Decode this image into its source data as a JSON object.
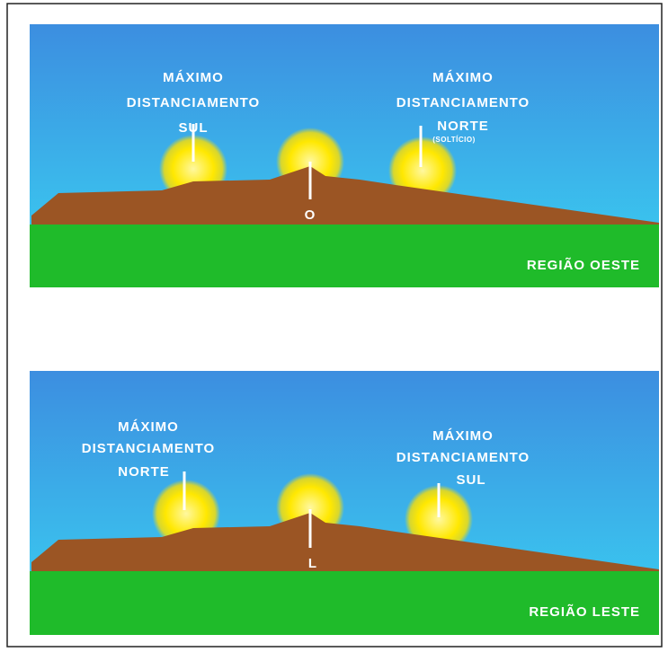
{
  "panels": [
    {
      "left_label": [
        "MÁXIMO",
        "DISTANCIAMENTO",
        "SUL"
      ],
      "right_label": [
        "MÁXIMO",
        "DISTANCIAMENTO",
        "NORTE",
        "(SOLTÍCIO)"
      ],
      "center_marker": "O",
      "region": "REGIÃO OESTE"
    },
    {
      "left_label": [
        "MÁXIMO",
        "DISTANCIAMENTO",
        "NORTE"
      ],
      "right_label": [
        "MÁXIMO",
        "DISTANCIAMENTO",
        "SUL"
      ],
      "center_marker": "L",
      "region": "REGIÃO LESTE"
    }
  ]
}
